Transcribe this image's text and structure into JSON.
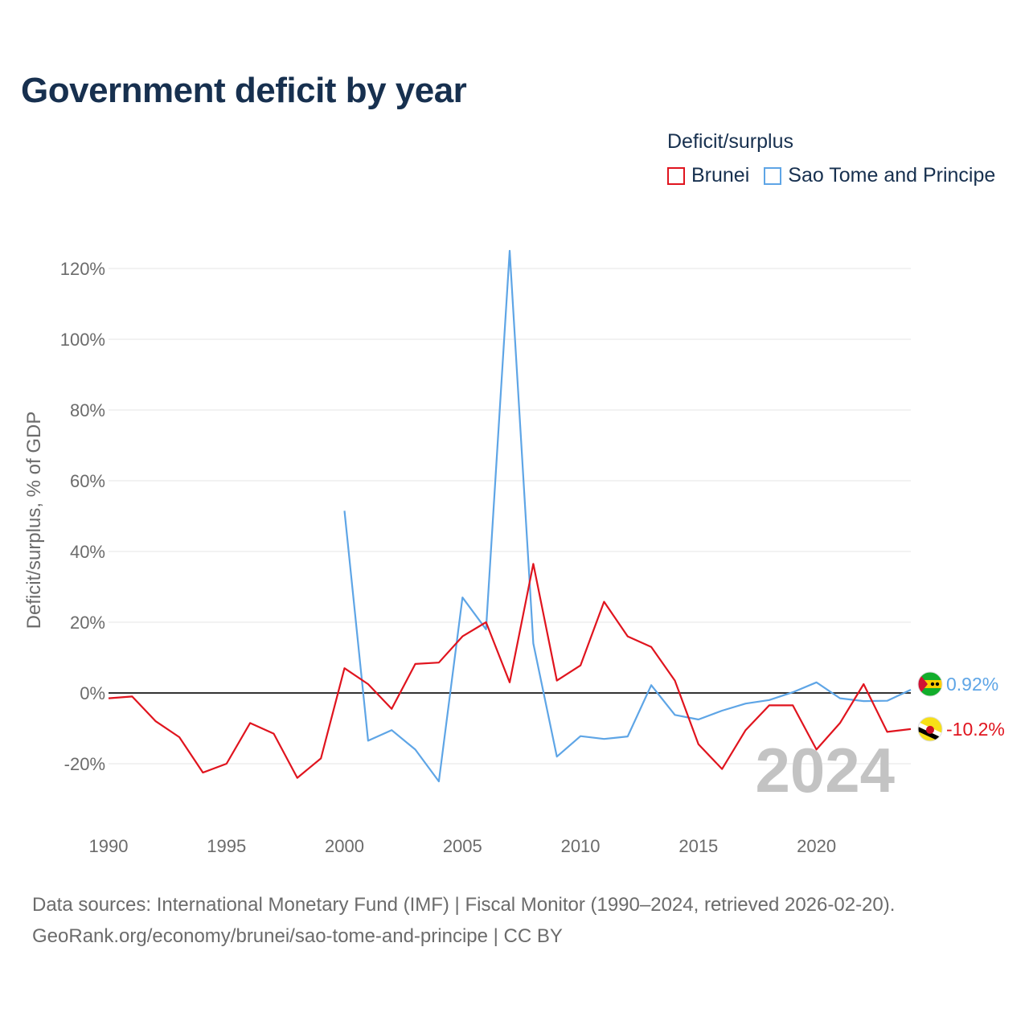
{
  "title": "Government deficit by year",
  "legend": {
    "title": "Deficit/surplus",
    "items": [
      {
        "label": "Brunei",
        "color": "#e0141e"
      },
      {
        "label": "Sao Tome and Principe",
        "color": "#5ea5e6"
      }
    ]
  },
  "sources": {
    "line1": "Data sources: International Monetary Fund (IMF) | Fiscal Monitor (1990–2024, retrieved 2026-02-20).",
    "line2": "GeoRank.org/economy/brunei/sao-tome-and-principe | CC BY"
  },
  "year_watermark": "2024",
  "chart_data": {
    "type": "line",
    "title": "Government deficit by year",
    "ylabel": "Deficit/surplus, % of GDP",
    "xlabel": "",
    "xlim": [
      1990,
      2024
    ],
    "ylim": [
      -25,
      125
    ],
    "x_ticks": [
      1990,
      1995,
      2000,
      2005,
      2010,
      2015,
      2020
    ],
    "y_ticks": [
      -20,
      0,
      20,
      40,
      60,
      80,
      100,
      120
    ],
    "y_tick_labels": [
      "-20%",
      "0%",
      "20%",
      "40%",
      "60%",
      "80%",
      "100%",
      "120%"
    ],
    "grid": true,
    "legend_position": "top-right",
    "series": [
      {
        "name": "Brunei",
        "color": "#e0141e",
        "end_label": "-10.2%",
        "x": [
          1990,
          1991,
          1992,
          1993,
          1994,
          1995,
          1996,
          1997,
          1998,
          1999,
          2000,
          2001,
          2002,
          2003,
          2004,
          2005,
          2006,
          2007,
          2008,
          2009,
          2010,
          2011,
          2012,
          2013,
          2014,
          2015,
          2016,
          2017,
          2018,
          2019,
          2020,
          2021,
          2022,
          2023,
          2024
        ],
        "values": [
          -1.5,
          -1,
          -8,
          -12.5,
          -22.5,
          -20,
          -8.5,
          -11.5,
          -24,
          -18.5,
          7,
          2.5,
          -4.5,
          8.2,
          8.6,
          16,
          20,
          3,
          36.5,
          3.5,
          7.8,
          25.8,
          16,
          13,
          3.5,
          -14.5,
          -21.5,
          -10.5,
          -3.5,
          -3.5,
          -16,
          -8.5,
          2.5,
          -11,
          -10.2
        ]
      },
      {
        "name": "Sao Tome and Principe",
        "color": "#5ea5e6",
        "end_label": "0.92%",
        "x": [
          2000,
          2001,
          2002,
          2003,
          2004,
          2005,
          2006,
          2007,
          2008,
          2009,
          2010,
          2011,
          2012,
          2013,
          2014,
          2015,
          2016,
          2017,
          2018,
          2019,
          2020,
          2021,
          2022,
          2023,
          2024
        ],
        "values": [
          51.5,
          -13.5,
          -10.5,
          -16,
          -25,
          27,
          18,
          125,
          14,
          -18,
          -12.2,
          -13,
          -12.3,
          2.2,
          -6.2,
          -7.5,
          -5,
          -3,
          -2,
          0.2,
          3,
          -1.5,
          -2.3,
          -2.2,
          0.92
        ]
      }
    ]
  }
}
